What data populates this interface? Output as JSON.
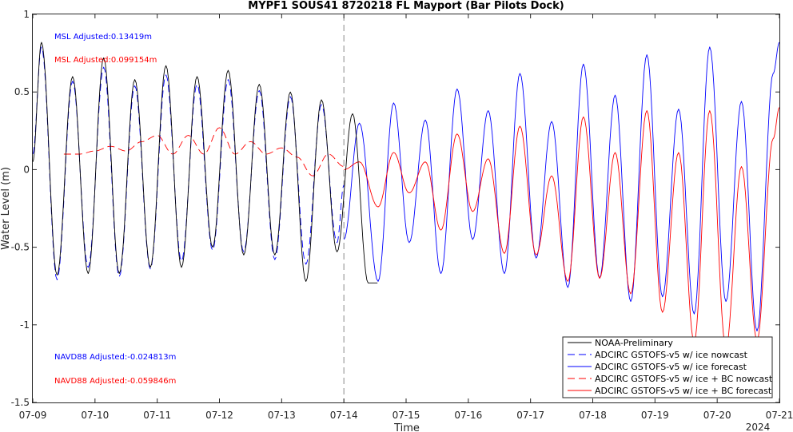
{
  "chart_data": {
    "type": "line",
    "title": "MYPF1 SOUS41 8720218 FL Mayport (Bar Pilots Dock)",
    "xlabel": "Time",
    "ylabel": "Water Level (m)",
    "year_label": "2024",
    "x_range": [
      "07-09",
      "07-21"
    ],
    "ylim": [
      -1.5,
      1
    ],
    "x_ticks": [
      "07-09",
      "07-10",
      "07-11",
      "07-12",
      "07-13",
      "07-14",
      "07-15",
      "07-16",
      "07-17",
      "07-18",
      "07-19",
      "07-20",
      "07-21"
    ],
    "y_ticks": [
      -1.5,
      -1,
      -0.5,
      0,
      0.5,
      1
    ],
    "y_tick_labels": [
      "-1.5",
      "-1",
      "-0.5",
      "0",
      "0.5",
      "1"
    ],
    "forecast_start": "07-14",
    "grid": false,
    "legend_position": "bottom-right",
    "colors": {
      "observed": "#000000",
      "gstofs": "#0000ff",
      "bc": "#ff0000",
      "divider": "#888888"
    },
    "annotations": [
      {
        "text": "MSL Adjusted:0.13419m",
        "color": "#0000ff"
      },
      {
        "text": "MSL Adjusted:0.099154m",
        "color": "#ff0000"
      },
      {
        "text": "NAVD88 Adjusted:-0.024813m",
        "color": "#0000ff"
      },
      {
        "text": "NAVD88 Adjusted:-0.059846m",
        "color": "#ff0000"
      }
    ],
    "series": [
      {
        "name": "NOAA-Preliminary",
        "color": "#000000",
        "dash": "solid",
        "x": [
          9.0,
          9.14,
          9.39,
          9.64,
          9.89,
          10.14,
          10.39,
          10.64,
          10.89,
          11.14,
          11.39,
          11.64,
          11.89,
          12.14,
          12.39,
          12.64,
          12.89,
          13.14,
          13.39,
          13.64,
          13.89,
          14.14,
          14.39,
          14.54
        ],
        "y": [
          0.05,
          0.82,
          -0.68,
          0.6,
          -0.67,
          0.72,
          -0.67,
          0.58,
          -0.63,
          0.67,
          -0.63,
          0.6,
          -0.5,
          0.64,
          -0.55,
          0.55,
          -0.55,
          0.5,
          -0.72,
          0.45,
          -0.53,
          0.36,
          -0.73,
          -0.73
        ]
      },
      {
        "name": "ADCIRC GSTOFS-v5 w/ ice nowcast",
        "color": "#0000ff",
        "dash": "dashed",
        "x": [
          9.0,
          9.14,
          9.39,
          9.64,
          9.89,
          10.14,
          10.39,
          10.64,
          10.89,
          11.14,
          11.39,
          11.64,
          11.89,
          12.14,
          12.39,
          12.64,
          12.89,
          13.14,
          13.39,
          13.64,
          13.89,
          14.0
        ],
        "y": [
          0.1,
          0.79,
          -0.71,
          0.57,
          -0.63,
          0.66,
          -0.69,
          0.54,
          -0.64,
          0.61,
          -0.59,
          0.55,
          -0.52,
          0.58,
          -0.53,
          0.51,
          -0.58,
          0.47,
          -0.61,
          0.42,
          -0.47,
          -0.1
        ]
      },
      {
        "name": "ADCIRC GSTOFS-v5 w/ ice forecast",
        "color": "#0000ff",
        "dash": "solid",
        "x": [
          14.0,
          14.25,
          14.55,
          14.8,
          15.05,
          15.31,
          15.56,
          15.82,
          16.07,
          16.32,
          16.58,
          16.83,
          17.09,
          17.34,
          17.6,
          17.85,
          18.11,
          18.36,
          18.61,
          18.87,
          19.12,
          19.38,
          19.63,
          19.88,
          20.14,
          20.39,
          20.64,
          20.9,
          21.0
        ],
        "y": [
          -0.45,
          0.3,
          -0.72,
          0.43,
          -0.47,
          0.32,
          -0.67,
          0.52,
          -0.45,
          0.38,
          -0.67,
          0.62,
          -0.57,
          0.31,
          -0.76,
          0.68,
          -0.7,
          0.48,
          -0.85,
          0.74,
          -0.82,
          0.39,
          -0.93,
          0.79,
          -0.85,
          0.44,
          -1.04,
          0.62,
          0.82
        ]
      },
      {
        "name": "ADCIRC GSTOFS-v5 w/ ice + BC nowcast",
        "color": "#ff0000",
        "dash": "dashed",
        "x": [
          9.5,
          9.75,
          10.0,
          10.25,
          10.5,
          10.75,
          11.0,
          11.25,
          11.5,
          11.75,
          12.0,
          12.25,
          12.5,
          12.75,
          13.0,
          13.25,
          13.5,
          13.75,
          14.0
        ],
        "y": [
          0.1,
          0.1,
          0.12,
          0.15,
          0.12,
          0.18,
          0.22,
          0.1,
          0.22,
          0.1,
          0.27,
          0.1,
          0.18,
          0.1,
          0.14,
          0.08,
          -0.04,
          0.1,
          0.02
        ]
      },
      {
        "name": "ADCIRC GSTOFS-v5 w/ ice + BC forecast",
        "color": "#ff0000",
        "dash": "solid",
        "x": [
          14.0,
          14.25,
          14.55,
          14.8,
          15.05,
          15.31,
          15.56,
          15.82,
          16.07,
          16.32,
          16.58,
          16.83,
          17.09,
          17.34,
          17.6,
          17.85,
          18.11,
          18.36,
          18.61,
          18.87,
          19.12,
          19.38,
          19.63,
          19.88,
          20.14,
          20.39,
          20.64,
          20.9,
          21.0
        ],
        "y": [
          0.0,
          0.05,
          -0.24,
          0.11,
          -0.15,
          0.05,
          -0.39,
          0.23,
          -0.27,
          0.07,
          -0.54,
          0.28,
          -0.55,
          -0.04,
          -0.72,
          0.34,
          -0.7,
          0.11,
          -0.8,
          0.38,
          -0.92,
          0.11,
          -1.11,
          0.38,
          -1.15,
          0.02,
          -1.1,
          0.2,
          0.4
        ]
      }
    ]
  }
}
